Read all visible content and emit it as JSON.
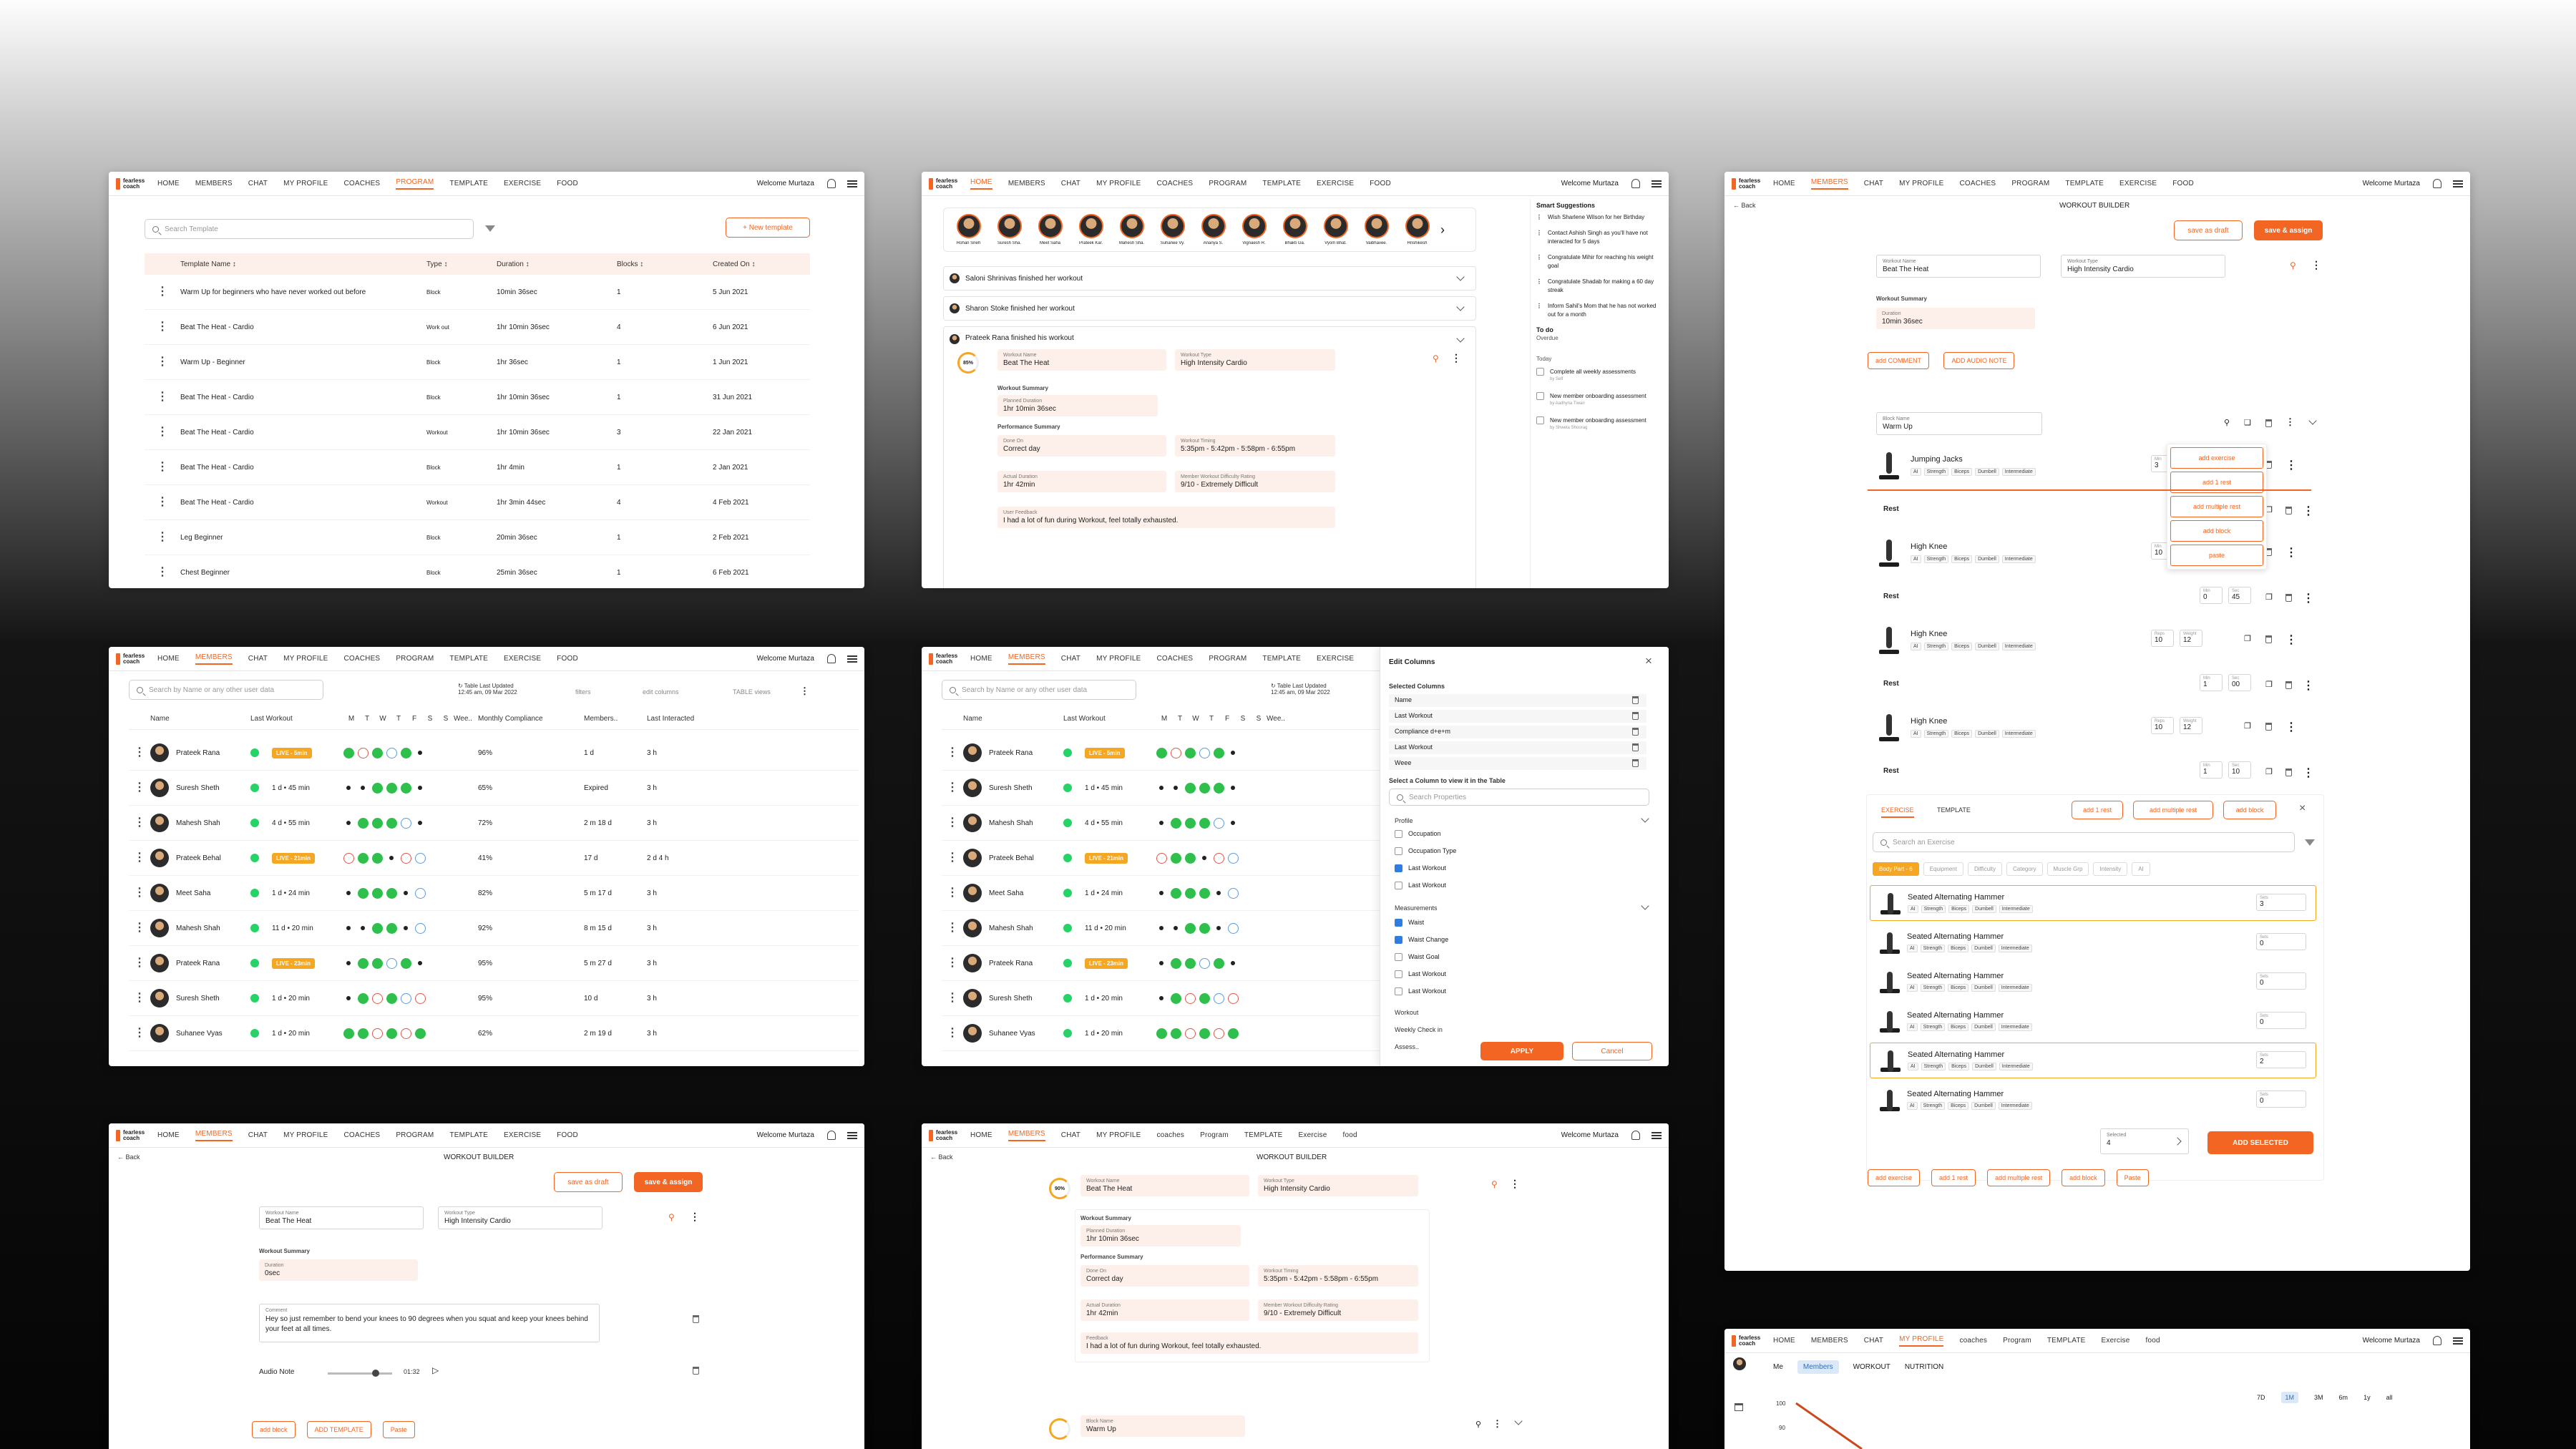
{
  "nav": {
    "home": "HOME",
    "members": "MEMBERS",
    "chat": "CHAT",
    "myprofile": "MY PROFILE",
    "coaches": "COACHES",
    "program": "PROGRAM",
    "template": "TEMPLATE",
    "exercise": "EXERCISE",
    "food": "FOOD",
    "welcome": "Welcome Murtaza",
    "logo": "fearless coach"
  },
  "nav_lower": {
    "coaches": "coaches",
    "program": "Program",
    "template": "TEMPLATE",
    "exercise": "Exercise",
    "food": "food"
  },
  "p1": {
    "search_placeholder": "Search Template",
    "new_template": "+ New template",
    "headers": [
      "Template Name ↕",
      "Type ↕",
      "Duration ↕",
      "Blocks ↕",
      "Created On ↕"
    ],
    "rows": [
      [
        "Warm Up for beginners who have never worked out before",
        "Block",
        "10min 36sec",
        "1",
        "5 Jun 2021"
      ],
      [
        "Beat The Heat - Cardio",
        "Work out",
        "1hr 10min 36sec",
        "4",
        "6 Jun 2021"
      ],
      [
        "Warm Up - Beginner",
        "Block",
        "1hr 36sec",
        "1",
        "1 Jun 2021"
      ],
      [
        "Beat The Heat - Cardio",
        "Block",
        "1hr 10min 36sec",
        "1",
        "31 Jun 2021"
      ],
      [
        "Beat The Heat - Cardio",
        "Workout",
        "1hr 10min 36sec",
        "3",
        "22 Jan 2021"
      ],
      [
        "Beat The Heat - Cardio",
        "Block",
        "1hr 4min",
        "1",
        "2 Jan 2021"
      ],
      [
        "Beat The Heat - Cardio",
        "Workout",
        "1hr 3min 44sec",
        "4",
        "4 Feb 2021"
      ],
      [
        "Leg Beginner",
        "Block",
        "20min 36sec",
        "1",
        "2 Feb 2021"
      ],
      [
        "Chest Beginner",
        "Block",
        "25min 36sec",
        "1",
        "6 Feb 2021"
      ]
    ]
  },
  "p2": {
    "stories": [
      "Rohan Sneh",
      "Suresh Sha.",
      "Meet Saha",
      "Prateek Kar.",
      "Mahesh Sha.",
      "Suhanee Vy.",
      "Ananya S.",
      "Vignaesh R.",
      "Bhakti Ga.",
      "Vyom Bhat.",
      "Vaibhavee.",
      "Hrishikesh"
    ],
    "feed": [
      "Saloni Shrinivas finished her workout",
      "Sharon Stoke finished her workout",
      "Prateek Rana finished his workout"
    ],
    "progress": "85%",
    "workout_name_label": "Workout Name",
    "workout_name": "Beat The Heat",
    "workout_type_label": "Workout Type",
    "workout_type": "High Intensity Cardio",
    "summary": "Workout Summary",
    "planned_label": "Planned Duration",
    "planned": "1hr 10min 36sec",
    "perf": "Performance Summary",
    "done_on_label": "Done On",
    "done_on": "Correct day",
    "timing_label": "Workout Timing",
    "timing": "5:35pm - 5:42pm - 5:58pm - 6:55pm",
    "actual_label": "Actual Duration",
    "actual": "1hr 42min",
    "rating_label": "Member Workout Difficulty Rating",
    "rating": "9/10 - Extremely Difficult",
    "feedback_label": "User Feedback",
    "feedback": "I had a lot of fun during Workout, feel totally exhausted.",
    "smart_title": "Smart Suggestions",
    "suggestions": [
      "Wish Sharlene Wilson for her Birthday",
      "Contact Ashish Singh as you'll have not interacted for 5 days",
      "Congratulate Mihir for reaching his weight goal",
      "Congratulate Shadab for making a 60 day streak",
      "Inform Sahil's Mom that he has not worked out for a month"
    ],
    "todo_title": "To do",
    "overdue": "Overdue",
    "today": "Today",
    "todos": [
      "Complete all weekly assessments",
      "New member onboarding assessment",
      "New member onboarding assessment"
    ],
    "todo_subs": [
      "by Self",
      "by Aadhyna Tiwari",
      "by Shweta Shoorag"
    ]
  },
  "p3": {
    "back": "Back",
    "title": "WORKOUT BUILDER",
    "save_draft": "save as draft",
    "save_assign": "save & assign",
    "wn_label": "Workout Name",
    "wn": "Beat The Heat",
    "wt_label": "Workout Type",
    "wt": "High Intensity Cardio",
    "summary": "Workout Summary",
    "dur_label": "Duration",
    "dur": "10min 36sec",
    "add_comment": "add COMMENT",
    "add_audio": "ADD AUDIO NOTE",
    "block_label": "Block Name",
    "block": "Warm Up",
    "menu": [
      "add exercise",
      "add 1 rest",
      "add multiple rest",
      "add block",
      "paste"
    ],
    "exercises": [
      {
        "name": "Jumping Jacks",
        "l1": "Min",
        "v1": "3",
        "l2": "",
        "v2": ""
      },
      {
        "name": "High Knee",
        "l1": "Min",
        "v1": "10",
        "l2": "Sec",
        "v2": "12"
      },
      {
        "name": "High Knee",
        "l1": "Reps",
        "v1": "10",
        "l2": "Weight",
        "v2": "12"
      },
      {
        "name": "High Knee",
        "l1": "Reps",
        "v1": "10",
        "l2": "Weight",
        "v2": "12"
      }
    ],
    "rests": [
      {
        "label": "Rest",
        "l1": "",
        "v1": "",
        "l2": "",
        "v2": ""
      },
      {
        "label": "Rest",
        "l1": "Min",
        "v1": "0",
        "l2": "Sec",
        "v2": "45"
      },
      {
        "label": "Rest",
        "l1": "Min",
        "v1": "1",
        "l2": "Sec",
        "v2": "00"
      },
      {
        "label": "Rest",
        "l1": "Min",
        "v1": "1",
        "l2": "Sec",
        "v2": "10"
      }
    ],
    "tags": [
      "AI",
      "Strength",
      "Biceps",
      "Dumbell",
      "Intermediate"
    ],
    "tab_exercise": "EXERCISE",
    "tab_template": "TEMPLATE",
    "add_rest": "add 1 rest",
    "add_multi": "add multiple rest",
    "add_block": "add block",
    "lib_search": "Search an Exercise",
    "filters": [
      "Body Part - 6",
      "Equipment",
      "Difficulty",
      "Category",
      "Muscle Grp",
      "Intensity",
      "AI"
    ],
    "lib": [
      {
        "name": "Seated Alternating Hammer",
        "sets": "3"
      },
      {
        "name": "Seated Alternating Hammer",
        "sets": "0"
      },
      {
        "name": "Seated Alternating Hammer",
        "sets": "0"
      },
      {
        "name": "Seated Alternating Hammer",
        "sets": "0"
      },
      {
        "name": "Seated Alternating Hammer",
        "sets": "2"
      },
      {
        "name": "Seated Alternating Hammer",
        "sets": "0"
      }
    ],
    "sets_label": "Sets",
    "selected_label": "Selected",
    "selected": "4",
    "add_selected": "ADD SELECTED",
    "bottom": [
      "add exercise",
      "add 1 rest",
      "add multiple rest",
      "add block",
      "Paste"
    ]
  },
  "members": {
    "search_placeholder": "Search by Name or any other user data",
    "updated_label": "Table Last Updated",
    "updated": "12:45 am, 09 Mar 2022",
    "filters": "filters",
    "edit_columns": "edit columns",
    "table_views": "TABLE views",
    "headers": [
      "Name",
      "Last Workout",
      "M",
      "T",
      "W",
      "T",
      "F",
      "S",
      "S",
      "Wee..",
      "Monthly Compliance",
      "Members..",
      "Last Interacted"
    ],
    "rows": [
      [
        "Prateek Rana",
        "LIVE - 5min",
        "96%",
        "1 d",
        "3 h"
      ],
      [
        "Suresh Sheth",
        "1 d • 45 min",
        "65%",
        "Expired",
        "3 h"
      ],
      [
        "Mahesh Shah",
        "4 d • 55 min",
        "72%",
        "2 m 18 d",
        "3 h"
      ],
      [
        "Prateek Behal",
        "LIVE - 21min",
        "41%",
        "17 d",
        "2 d 4 h"
      ],
      [
        "Meet Saha",
        "1 d • 24 min",
        "82%",
        "5 m 17 d",
        "3 h"
      ],
      [
        "Mahesh Shah",
        "11 d • 20 min",
        "92%",
        "8 m 15 d",
        "3 h"
      ],
      [
        "Prateek Rana",
        "LIVE - 23min",
        "95%",
        "5 m 27 d",
        "3 h"
      ],
      [
        "Suresh Sheth",
        "1 d • 20 min",
        "95%",
        "10 d",
        "3 h"
      ],
      [
        "Suhanee Vyas",
        "1 d • 20 min",
        "62%",
        "2 m 19 d",
        "3 h"
      ]
    ]
  },
  "edit": {
    "title": "Edit Columns",
    "selected_title": "Selected Columns",
    "selected": [
      "Name",
      "Last Workout",
      "Compliance d+e+m",
      "Last Workout",
      "Weee"
    ],
    "select_title": "Select a Column to view it in the Table",
    "search": "Search Properties",
    "profile": "Profile",
    "profile_items": [
      "Occupation",
      "Occupation Type",
      "Last Workout",
      "Last Workout"
    ],
    "meas": "Measurements",
    "meas_items": [
      "Waist",
      "Waist Change",
      "Waist Goal",
      "Last Workout",
      "Last Workout"
    ],
    "workout": "Workout",
    "weekly": "Weekly Check in",
    "assess": "Assess..",
    "apply": "APPLY",
    "cancel": "Cancel"
  },
  "p7": {
    "comment_label": "Comment",
    "comment": "Hey so just remember to bend your knees to 90 degrees when you squat and keep your knees behind your feet at all times.",
    "audio": "Audio Note",
    "audio_time": "01:32",
    "dur": "0sec",
    "add_block": "add block",
    "add_template": "ADD TEMPLATE",
    "paste": "Paste"
  },
  "p8": {
    "progress": "90%",
    "feedback_label": "Feedback",
    "block_label": "Block Name",
    "block": "Warm Up"
  },
  "p9": {
    "tabs": [
      "Me",
      "Members",
      "WORKOUT",
      "NUTRITION"
    ],
    "ranges": [
      "7D",
      "1M",
      "3M",
      "6m",
      "1y",
      "all"
    ],
    "y100": "100",
    "y90": "90"
  }
}
